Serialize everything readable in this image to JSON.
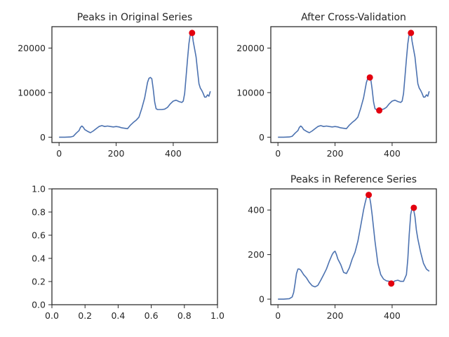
{
  "chart_data": [
    {
      "id": "original",
      "type": "line",
      "title": "Peaks in Original Series",
      "xlim": [
        -25,
        555
      ],
      "ylim": [
        -1200,
        24800
      ],
      "xticks": [
        0,
        200,
        400
      ],
      "yticks": [
        0,
        10000,
        20000
      ],
      "series": [
        {
          "x": [
            0,
            20,
            40,
            50,
            60,
            70,
            75,
            80,
            85,
            90,
            100,
            110,
            120,
            130,
            140,
            150,
            160,
            170,
            180,
            190,
            200,
            210,
            220,
            230,
            240,
            250,
            260,
            270,
            280,
            290,
            300,
            310,
            315,
            320,
            325,
            330,
            335,
            340,
            345,
            350,
            360,
            370,
            380,
            390,
            400,
            410,
            420,
            430,
            435,
            440,
            445,
            450,
            455,
            460,
            463,
            467,
            470,
            475,
            480,
            485,
            490,
            495,
            500,
            505,
            510,
            515,
            520,
            525,
            530
          ],
          "values": [
            0,
            0,
            50,
            200,
            900,
            1500,
            2200,
            2500,
            2200,
            1700,
            1300,
            1000,
            1400,
            1900,
            2400,
            2600,
            2400,
            2500,
            2400,
            2300,
            2400,
            2300,
            2100,
            2000,
            1900,
            2700,
            3300,
            3800,
            4500,
            6500,
            8800,
            12300,
            13200,
            13400,
            13100,
            10800,
            7900,
            6400,
            6200,
            6200,
            6200,
            6300,
            6700,
            7500,
            8100,
            8300,
            8000,
            7800,
            8100,
            9800,
            13500,
            17500,
            21000,
            23200,
            23500,
            23000,
            21500,
            19800,
            18000,
            15000,
            12000,
            11000,
            10500,
            9800,
            9000,
            9000,
            9500,
            9200,
            10300
          ]
        }
      ],
      "peaks": [
        {
          "x": 466,
          "y": 23400
        }
      ]
    },
    {
      "id": "cross-validation",
      "type": "line",
      "title": "After Cross-Validation",
      "xlim": [
        -25,
        555
      ],
      "ylim": [
        -1200,
        24800
      ],
      "xticks": [
        0,
        200,
        400
      ],
      "yticks": [
        0,
        10000,
        20000
      ],
      "series": [
        {
          "x": [
            0,
            20,
            40,
            50,
            60,
            70,
            75,
            80,
            85,
            90,
            100,
            110,
            120,
            130,
            140,
            150,
            160,
            170,
            180,
            190,
            200,
            210,
            220,
            230,
            240,
            250,
            260,
            270,
            280,
            290,
            300,
            310,
            315,
            320,
            325,
            330,
            335,
            340,
            345,
            350,
            360,
            370,
            380,
            390,
            400,
            410,
            420,
            430,
            435,
            440,
            445,
            450,
            455,
            460,
            463,
            467,
            470,
            475,
            480,
            485,
            490,
            495,
            500,
            505,
            510,
            515,
            520,
            525,
            530
          ],
          "values": [
            0,
            0,
            50,
            200,
            900,
            1500,
            2200,
            2500,
            2200,
            1700,
            1300,
            1000,
            1400,
            1900,
            2400,
            2600,
            2400,
            2500,
            2400,
            2300,
            2400,
            2300,
            2100,
            2000,
            1900,
            2700,
            3300,
            3800,
            4500,
            6500,
            8800,
            12300,
            13200,
            13400,
            13100,
            10800,
            7900,
            6400,
            6200,
            6200,
            6200,
            6300,
            6700,
            7500,
            8100,
            8300,
            8000,
            7800,
            8100,
            9800,
            13500,
            17500,
            21000,
            23200,
            23500,
            23000,
            21500,
            19800,
            18000,
            15000,
            12000,
            11000,
            10500,
            9800,
            9000,
            9000,
            9500,
            9200,
            10300
          ]
        }
      ],
      "peaks": [
        {
          "x": 322,
          "y": 13400
        },
        {
          "x": 355,
          "y": 6000
        },
        {
          "x": 466,
          "y": 23400
        }
      ]
    },
    {
      "id": "empty",
      "type": "line",
      "title": "",
      "xlim": [
        0,
        1
      ],
      "ylim": [
        0,
        1
      ],
      "xticks": [
        0.0,
        0.2,
        0.4,
        0.6,
        0.8,
        1.0
      ],
      "yticks": [
        0.0,
        0.2,
        0.4,
        0.6,
        0.8,
        1.0
      ],
      "xtick_labels": [
        "0.0",
        "0.2",
        "0.4",
        "0.6",
        "0.8",
        "1.0"
      ],
      "ytick_labels": [
        "0.0",
        "0.2",
        "0.4",
        "0.6",
        "0.8",
        "1.0"
      ],
      "series": [],
      "peaks": []
    },
    {
      "id": "reference",
      "type": "line",
      "title": "Peaks in Reference Series",
      "xlim": [
        -25,
        555
      ],
      "ylim": [
        -25,
        495
      ],
      "xticks": [
        0,
        200,
        400
      ],
      "yticks": [
        0,
        200,
        400
      ],
      "series": [
        {
          "x": [
            0,
            20,
            40,
            50,
            55,
            60,
            65,
            70,
            75,
            80,
            85,
            90,
            100,
            110,
            120,
            130,
            140,
            150,
            160,
            170,
            180,
            190,
            195,
            200,
            205,
            210,
            220,
            230,
            240,
            250,
            260,
            270,
            280,
            290,
            300,
            305,
            310,
            315,
            320,
            325,
            330,
            340,
            350,
            360,
            370,
            380,
            390,
            395,
            400,
            410,
            420,
            430,
            440,
            450,
            455,
            460,
            465,
            470,
            475,
            480,
            485,
            490,
            500,
            510,
            520,
            530
          ],
          "values": [
            0,
            0,
            2,
            10,
            30,
            70,
            115,
            135,
            135,
            130,
            120,
            110,
            95,
            75,
            60,
            55,
            62,
            85,
            110,
            135,
            170,
            200,
            210,
            215,
            200,
            180,
            155,
            120,
            115,
            140,
            180,
            210,
            260,
            330,
            400,
            430,
            455,
            465,
            465,
            430,
            380,
            260,
            160,
            110,
            90,
            82,
            80,
            70,
            72,
            82,
            85,
            80,
            80,
            110,
            180,
            290,
            380,
            410,
            405,
            370,
            310,
            270,
            210,
            160,
            135,
            125
          ]
        }
      ],
      "peaks": [
        {
          "x": 318,
          "y": 468
        },
        {
          "x": 397,
          "y": 70
        },
        {
          "x": 476,
          "y": 410
        }
      ]
    }
  ]
}
